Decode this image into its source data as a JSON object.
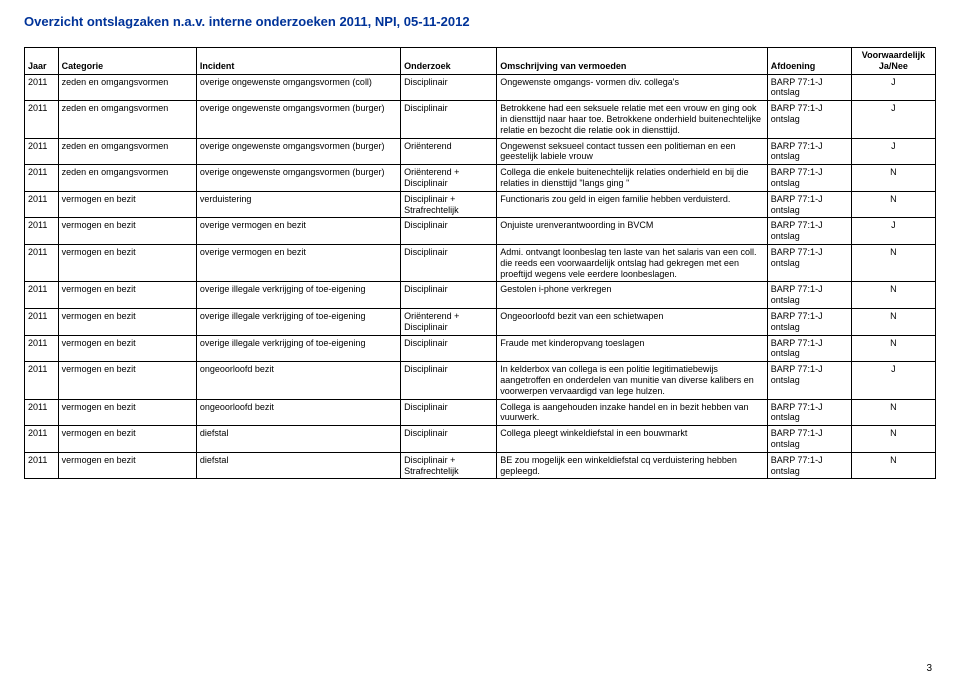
{
  "title": "Overzicht ontslagzaken n.a.v. interne onderzoeken 2011, NPI, 05-11-2012",
  "page_number": "3",
  "headers": {
    "jaar": "Jaar",
    "categorie": "Categorie",
    "incident": "Incident",
    "onderzoek": "Onderzoek",
    "omschrijving": "Omschrijving van vermoeden",
    "afdoening": "Afdoening",
    "voorwaardelijk": "Voorwaardelijk Ja/Nee"
  },
  "rows": [
    {
      "jaar": "2011",
      "categorie": "zeden en omgangsvormen",
      "incident": "overige ongewenste omgangsvormen (coll)",
      "onderzoek": "Disciplinair",
      "omschrijving": "Ongewenste omgangs- vormen div. collega's",
      "afdoening": "BARP 77:1-J ontslag",
      "voorwaardelijk": "J"
    },
    {
      "jaar": "2011",
      "categorie": "zeden en omgangsvormen",
      "incident": "overige ongewenste omgangsvormen (burger)",
      "onderzoek": "Disciplinair",
      "omschrijving": "Betrokkene had een seksuele relatie met een vrouw en ging ook in diensttijd naar haar toe. Betrokkene onderhield buitenechtelijke relatie en bezocht die relatie ook in diensttijd.",
      "afdoening": "BARP 77:1-J ontslag",
      "voorwaardelijk": "J"
    },
    {
      "jaar": "2011",
      "categorie": "zeden en omgangsvormen",
      "incident": "overige ongewenste omgangsvormen (burger)",
      "onderzoek": "Oriënterend",
      "omschrijving": "Ongewenst seksueel contact tussen een politieman en een geestelijk labiele vrouw",
      "afdoening": "BARP 77:1-J ontslag",
      "voorwaardelijk": "J"
    },
    {
      "jaar": "2011",
      "categorie": "zeden en omgangsvormen",
      "incident": "overige ongewenste omgangsvormen (burger)",
      "onderzoek": "Oriënterend + Disciplinair",
      "omschrijving": "Collega die enkele buitenechtelijk relaties onderhield en bij die relaties in diensttijd \"langs ging \"",
      "afdoening": "BARP 77:1-J ontslag",
      "voorwaardelijk": "N"
    },
    {
      "jaar": "2011",
      "categorie": "vermogen en bezit",
      "incident": "verduistering",
      "onderzoek": "Disciplinair + Strafrechtelijk",
      "omschrijving": "Functionaris zou geld in eigen familie hebben verduisterd.",
      "afdoening": "BARP 77:1-J ontslag",
      "voorwaardelijk": "N"
    },
    {
      "jaar": "2011",
      "categorie": "vermogen en bezit",
      "incident": "overige vermogen en bezit",
      "onderzoek": "Disciplinair",
      "omschrijving": "Onjuiste urenverantwoording in BVCM",
      "afdoening": "BARP 77:1-J ontslag",
      "voorwaardelijk": "J"
    },
    {
      "jaar": "2011",
      "categorie": "vermogen en bezit",
      "incident": "overige vermogen en bezit",
      "onderzoek": "Disciplinair",
      "omschrijving": "Admi. ontvangt loonbeslag ten laste van het salaris van een coll. die reeds een voorwaardelijk ontslag had gekregen met een proeftijd wegens vele eerdere loonbeslagen.",
      "afdoening": "BARP 77:1-J ontslag",
      "voorwaardelijk": "N"
    },
    {
      "jaar": "2011",
      "categorie": "vermogen en bezit",
      "incident": "overige illegale verkrijging of toe-eigening",
      "onderzoek": "Disciplinair",
      "omschrijving": "Gestolen i-phone verkregen",
      "afdoening": "BARP 77:1-J ontslag",
      "voorwaardelijk": "N"
    },
    {
      "jaar": "2011",
      "categorie": "vermogen en bezit",
      "incident": "overige illegale verkrijging of toe-eigening",
      "onderzoek": "Oriënterend + Disciplinair",
      "omschrijving": "Ongeoorloofd bezit van een schietwapen",
      "afdoening": "BARP 77:1-J ontslag",
      "voorwaardelijk": "N"
    },
    {
      "jaar": "2011",
      "categorie": "vermogen en bezit",
      "incident": "overige illegale verkrijging of toe-eigening",
      "onderzoek": "Disciplinair",
      "omschrijving": "Fraude met kinderopvang toeslagen",
      "afdoening": "BARP 77:1-J ontslag",
      "voorwaardelijk": "N"
    },
    {
      "jaar": "2011",
      "categorie": "vermogen en bezit",
      "incident": "ongeoorloofd bezit",
      "onderzoek": "Disciplinair",
      "omschrijving": "In kelderbox van collega is een politie legitimatiebewijs aangetroffen en onderdelen van munitie van diverse kalibers en voorwerpen vervaardigd van lege hulzen.",
      "afdoening": "BARP 77:1-J ontslag",
      "voorwaardelijk": "J"
    },
    {
      "jaar": "2011",
      "categorie": "vermogen en bezit",
      "incident": "ongeoorloofd bezit",
      "onderzoek": "Disciplinair",
      "omschrijving": "Collega is aangehouden inzake handel en in bezit hebben van vuurwerk.",
      "afdoening": "BARP 77:1-J ontslag",
      "voorwaardelijk": "N"
    },
    {
      "jaar": "2011",
      "categorie": "vermogen en bezit",
      "incident": "diefstal",
      "onderzoek": "Disciplinair",
      "omschrijving": "Collega pleegt winkeldiefstal in een bouwmarkt",
      "afdoening": "BARP 77:1-J ontslag",
      "voorwaardelijk": "N"
    },
    {
      "jaar": "2011",
      "categorie": "vermogen en bezit",
      "incident": "diefstal",
      "onderzoek": "Disciplinair + Strafrechtelijk",
      "omschrijving": "BE zou mogelijk een winkeldiefstal cq verduistering hebben gepleegd.",
      "afdoening": "BARP 77:1-J ontslag",
      "voorwaardelijk": "N"
    }
  ]
}
